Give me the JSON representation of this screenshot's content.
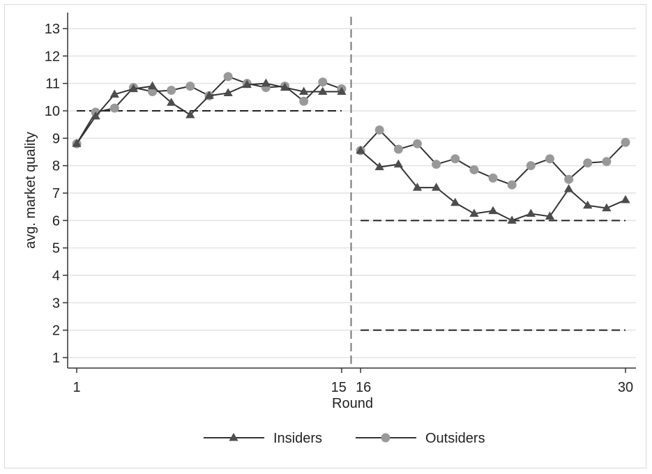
{
  "chart_data": {
    "type": "line",
    "title": "",
    "xlabel": "Round",
    "ylabel": "avg. market quality",
    "xlim": [
      1,
      30
    ],
    "ylim": [
      1,
      13
    ],
    "x_ticks": [
      {
        "value": 1,
        "label": "1"
      },
      {
        "value": 15,
        "label": "15"
      },
      {
        "value": 16,
        "label": "16"
      },
      {
        "value": 30,
        "label": "30"
      }
    ],
    "y_ticks": [
      1,
      2,
      3,
      4,
      5,
      6,
      7,
      8,
      9,
      10,
      11,
      12,
      13
    ],
    "grid": "horizontal",
    "vertical_divider_x": 15.5,
    "reference_lines": [
      {
        "y": 10,
        "x_start": 1,
        "x_end": 15
      },
      {
        "y": 6,
        "x_start": 16,
        "x_end": 30
      },
      {
        "y": 2,
        "x_start": 16,
        "x_end": 30
      }
    ],
    "legend_position": "bottom",
    "series": [
      {
        "name": "Insiders",
        "marker": "triangle",
        "color": "#4d4d4d",
        "segments": [
          {
            "x": [
              1,
              2,
              3,
              4,
              5,
              6,
              7,
              8,
              9,
              10,
              11,
              12,
              13,
              14,
              15
            ],
            "y": [
              8.8,
              9.8,
              10.6,
              10.8,
              10.9,
              10.3,
              9.85,
              10.55,
              10.65,
              10.95,
              11.0,
              10.85,
              10.7,
              10.7,
              10.7
            ]
          },
          {
            "x": [
              16,
              17,
              18,
              19,
              20,
              21,
              22,
              23,
              24,
              25,
              26,
              27,
              28,
              29,
              30
            ],
            "y": [
              8.55,
              7.95,
              8.05,
              7.2,
              7.2,
              6.65,
              6.25,
              6.35,
              6.0,
              6.25,
              6.15,
              7.15,
              6.55,
              6.45,
              6.75
            ]
          }
        ]
      },
      {
        "name": "Outsiders",
        "marker": "circle",
        "color": "#999999",
        "segments": [
          {
            "x": [
              1,
              2,
              3,
              4,
              5,
              6,
              7,
              8,
              9,
              10,
              11,
              12,
              13,
              14,
              15
            ],
            "y": [
              8.8,
              9.95,
              10.1,
              10.85,
              10.7,
              10.75,
              10.9,
              10.55,
              11.25,
              11.0,
              10.85,
              10.9,
              10.35,
              11.05,
              10.8
            ]
          },
          {
            "x": [
              16,
              17,
              18,
              19,
              20,
              21,
              22,
              23,
              24,
              25,
              26,
              27,
              28,
              29,
              30
            ],
            "y": [
              8.55,
              9.3,
              8.6,
              8.8,
              8.05,
              8.25,
              7.85,
              7.55,
              7.3,
              8.0,
              8.25,
              7.5,
              8.1,
              8.15,
              8.85
            ]
          }
        ]
      }
    ]
  }
}
